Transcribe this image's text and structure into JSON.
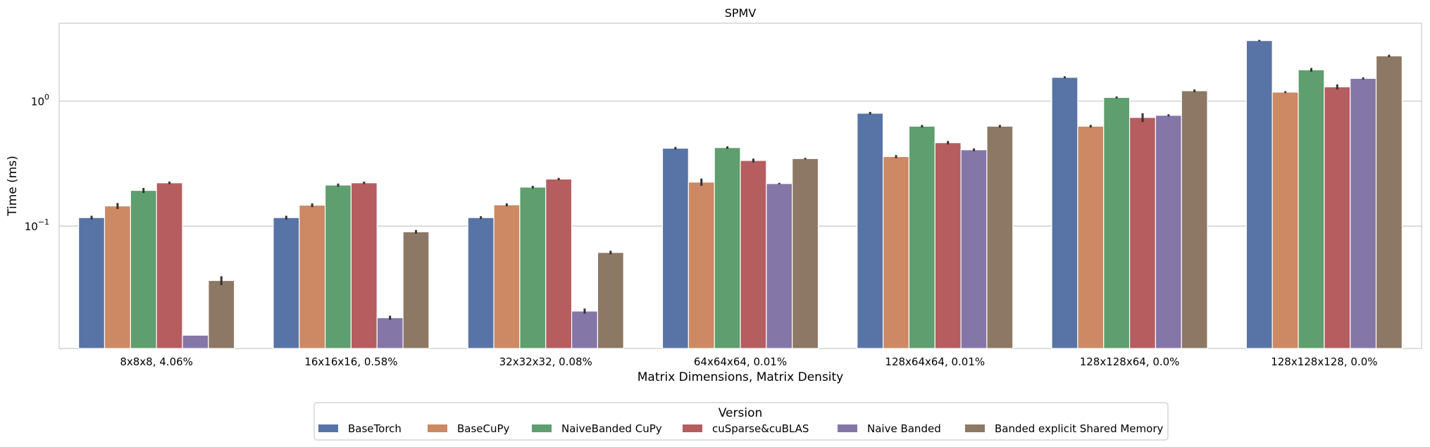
{
  "chart_data": {
    "type": "bar",
    "title": "SPMV",
    "xlabel": "Matrix Dimensions, Matrix Density",
    "ylabel": "Time (ms)",
    "yscale": "log",
    "ylim": [
      0.0105,
      4.2
    ],
    "yticks": [
      {
        "value": 0.1,
        "base": "10",
        "exp": "−1"
      },
      {
        "value": 1,
        "base": "10",
        "exp": "0"
      }
    ],
    "grid": "horizontal",
    "legend": {
      "title": "Version",
      "placement": "bottom-center"
    },
    "categories": [
      "8x8x8, 4.06%",
      "16x16x16, 0.58%",
      "32x32x32, 0.08%",
      "64x64x64, 0.01%",
      "128x64x64, 0.01%",
      "128x128x64, 0.0%",
      "128x128x128, 0.0%"
    ],
    "series": [
      {
        "name": "BaseTorch",
        "color": "#5873a5",
        "values": [
          0.117,
          0.117,
          0.117,
          0.42,
          0.8,
          1.55,
          3.05
        ],
        "err": [
          0.004,
          0.004,
          0.003,
          0.01,
          0.02,
          0.03,
          0.04
        ]
      },
      {
        "name": "BaseCuPy",
        "color": "#cc8963",
        "values": [
          0.145,
          0.147,
          0.148,
          0.225,
          0.36,
          0.63,
          1.18
        ],
        "err": [
          0.008,
          0.005,
          0.004,
          0.015,
          0.01,
          0.015,
          0.02
        ]
      },
      {
        "name": "NaiveBanded CuPy",
        "color": "#5f9e6f",
        "values": [
          0.193,
          0.213,
          0.205,
          0.425,
          0.63,
          1.07,
          1.78
        ],
        "err": [
          0.009,
          0.006,
          0.005,
          0.01,
          0.015,
          0.02,
          0.06
        ]
      },
      {
        "name": "cuSparse&cuBLAS",
        "color": "#b65d60",
        "values": [
          0.222,
          0.222,
          0.238,
          0.335,
          0.465,
          0.74,
          1.3
        ],
        "err": [
          0.005,
          0.005,
          0.005,
          0.012,
          0.015,
          0.06,
          0.06
        ]
      },
      {
        "name": "Naive Banded",
        "color": "#8576a8",
        "values": [
          0.0134,
          0.0185,
          0.0209,
          0.219,
          0.408,
          0.77,
          1.52
        ],
        "err": [
          0.0,
          0.0007,
          0.001,
          0.003,
          0.01,
          0.015,
          0.03
        ]
      },
      {
        "name": "Banded explicit Shared Memory",
        "color": "#8c7864",
        "values": [
          0.0367,
          0.09,
          0.0615,
          0.347,
          0.63,
          1.21,
          2.3
        ],
        "err": [
          0.003,
          0.003,
          0.002,
          0.005,
          0.015,
          0.03,
          0.05
        ]
      }
    ]
  }
}
